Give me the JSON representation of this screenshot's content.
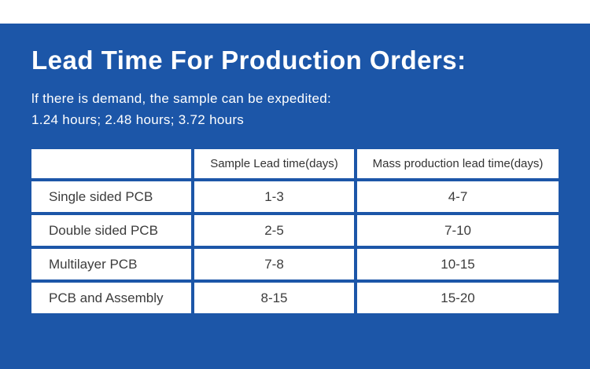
{
  "page": {
    "background_color": "#1c56a8",
    "top_strip_color": "#ffffff"
  },
  "header": {
    "title": "Lead Time For Production Orders:",
    "subtitle_line1": "lf there is demand, the sample can be expedited:",
    "subtitle_line2": "1.24 hours; 2.48 hours; 3.72 hours"
  },
  "chart_data": {
    "type": "table",
    "columns": [
      "",
      "Sample Lead time(days)",
      "Mass production lead time(days)"
    ],
    "rows": [
      {
        "label": "Single sided PCB",
        "sample_lead_time": "1-3",
        "mass_production_lead_time": "4-7"
      },
      {
        "label": "Double sided PCB",
        "sample_lead_time": "2-5",
        "mass_production_lead_time": "7-10"
      },
      {
        "label": "Multilayer PCB",
        "sample_lead_time": "7-8",
        "mass_production_lead_time": "10-15"
      },
      {
        "label": "PCB and Assembly",
        "sample_lead_time": "8-15",
        "mass_production_lead_time": "15-20"
      }
    ]
  }
}
